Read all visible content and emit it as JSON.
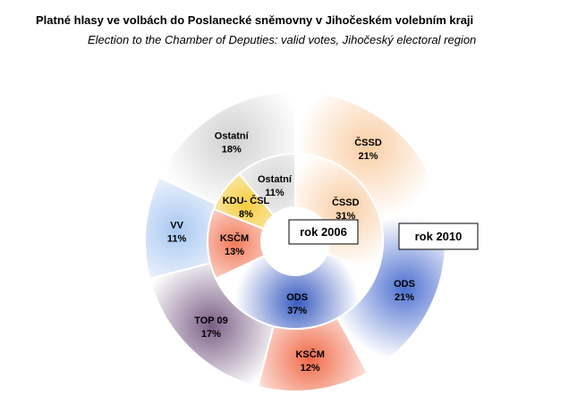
{
  "header": {
    "title": "Platné hlasy ve volbách do Poslanecké sněmovny  v Jihočeském volebním  kraji",
    "subtitle": "Election to the Chamber of Deputies: valid votes, Jihočeský electoral region"
  },
  "chart_data": {
    "type": "pie",
    "variant": "doughnut",
    "rings": [
      {
        "name": "rok 2006",
        "ring": "inner",
        "slices": [
          {
            "label": "ČSSD",
            "value": 31,
            "display": "31%",
            "color": "#f9cda3"
          },
          {
            "label": "ODS",
            "value": 37,
            "display": "37%",
            "color": "#3a5bc0"
          },
          {
            "label": "KSČM",
            "value": 13,
            "display": "13%",
            "color": "#f27a5a"
          },
          {
            "label": "KDU- ČSL",
            "value": 8,
            "display": "8%",
            "color": "#f5cc3d"
          },
          {
            "label": "Ostatní",
            "value": 11,
            "display": "11%",
            "color": "#d6d6d6"
          }
        ]
      },
      {
        "name": "rok 2010",
        "ring": "outer",
        "slices": [
          {
            "label": "ČSSD",
            "value": 21,
            "display": "21%",
            "color": "#f9cda3"
          },
          {
            "label": "ODS",
            "value": 21,
            "display": "21%",
            "color": "#4d6fd0"
          },
          {
            "label": "KSČM",
            "value": 12,
            "display": "12%",
            "color": "#f06a48"
          },
          {
            "label": "TOP 09",
            "value": 17,
            "display": "17%",
            "color": "#7b5e86"
          },
          {
            "label": "VV",
            "value": 11,
            "display": "11%",
            "color": "#a9c8f2"
          },
          {
            "label": "Ostatní",
            "value": 18,
            "display": "18%",
            "color": "#d0d0d0"
          }
        ]
      }
    ]
  }
}
